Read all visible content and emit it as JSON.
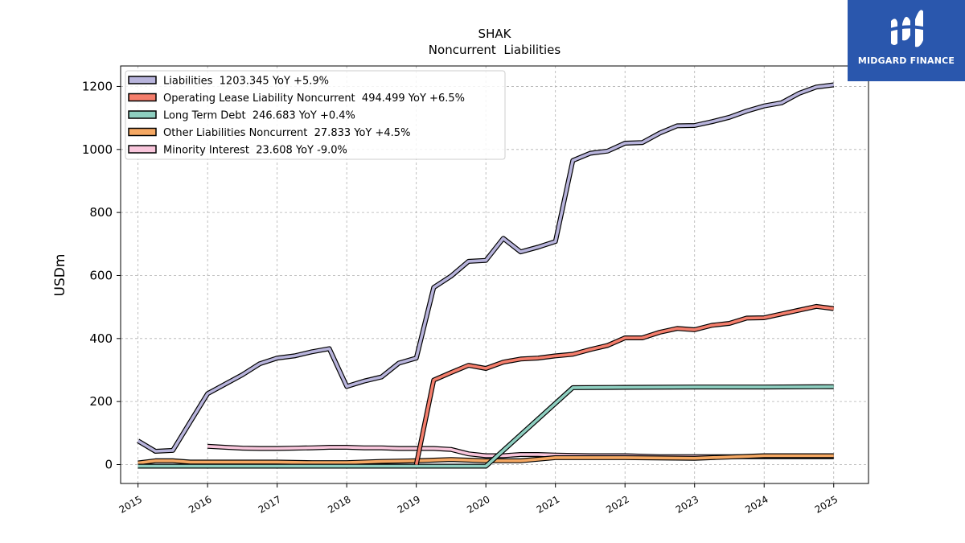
{
  "brand": {
    "name": "MIDGARD FINANCE",
    "logo_icon": "midgard-finance-logo-icon",
    "color": "#2a57ad"
  },
  "chart_data": {
    "type": "line",
    "title": "SHAK",
    "subtitle": "Noncurrent  Liabilities",
    "ylabel": "USDm",
    "xlabel": "",
    "xlim": [
      2014.75,
      2025.5
    ],
    "ylim": [
      -60,
      1265
    ],
    "yticks": [
      0,
      200,
      400,
      600,
      800,
      1000,
      1200
    ],
    "xticks": [
      2015,
      2016,
      2017,
      2018,
      2019,
      2020,
      2021,
      2022,
      2023,
      2024,
      2025
    ],
    "xtick_labels": [
      "2015",
      "2016",
      "2017",
      "2018",
      "2019",
      "2020",
      "2021",
      "2022",
      "2023",
      "2024",
      "2025"
    ],
    "grid": true,
    "legend_position": "top-left",
    "series": [
      {
        "name": "Liabilities",
        "legend": "Liabilities  1203.345 YoY +5.9%",
        "color": "#b8b4dc",
        "x": [
          2015.0,
          2015.25,
          2015.5,
          2015.75,
          2016.0,
          2016.25,
          2016.5,
          2016.75,
          2017.0,
          2017.25,
          2017.5,
          2017.75,
          2018.0,
          2018.25,
          2018.5,
          2018.75,
          2019.0,
          2019.25,
          2019.5,
          2019.75,
          2020.0,
          2020.25,
          2020.5,
          2020.75,
          2021.0,
          2021.25,
          2021.5,
          2021.75,
          2022.0,
          2022.25,
          2022.5,
          2022.75,
          2023.0,
          2023.25,
          2023.5,
          2023.75,
          2024.0,
          2024.25,
          2024.5,
          2024.75,
          2025.0
        ],
        "y": [
          75,
          42,
          45,
          135,
          225,
          255,
          285,
          320,
          338,
          345,
          358,
          368,
          248,
          265,
          278,
          322,
          338,
          562,
          598,
          645,
          648,
          718,
          675,
          690,
          708,
          965,
          988,
          995,
          1020,
          1022,
          1052,
          1075,
          1076,
          1088,
          1102,
          1122,
          1138,
          1148,
          1178,
          1198,
          1205
        ]
      },
      {
        "name": "Operating Lease Liability Noncurrent",
        "legend": "Operating Lease Liability Noncurrent  494.499 YoY +6.5%",
        "color": "#f47e6c",
        "x": [
          2019.0,
          2019.25,
          2019.5,
          2019.75,
          2020.0,
          2020.25,
          2020.5,
          2020.75,
          2021.0,
          2021.25,
          2021.5,
          2021.75,
          2022.0,
          2022.25,
          2022.5,
          2022.75,
          2023.0,
          2023.25,
          2023.5,
          2023.75,
          2024.0,
          2024.25,
          2024.5,
          2024.75,
          2025.0
        ],
        "y": [
          0,
          268,
          292,
          315,
          305,
          325,
          335,
          338,
          345,
          350,
          365,
          378,
          402,
          402,
          420,
          432,
          428,
          442,
          448,
          465,
          466,
          478,
          490,
          502,
          495
        ]
      },
      {
        "name": "Long Term Debt",
        "legend": "Long Term Debt  246.683 YoY +0.4%",
        "color": "#8ecfc0",
        "x": [
          2015.0,
          2019.0,
          2020.0,
          2021.25,
          2022.0,
          2023.0,
          2024.0,
          2025.0
        ],
        "y": [
          -5,
          -5,
          -5,
          244,
          245,
          246,
          246,
          247
        ]
      },
      {
        "name": "Other Liabilities Noncurrent",
        "legend": "Other Liabilities Noncurrent  27.833 YoY +4.5%",
        "color": "#f5a863",
        "x": [
          2015.0,
          2015.25,
          2015.5,
          2015.75,
          2016.0,
          2016.5,
          2017.0,
          2017.5,
          2018.0,
          2018.5,
          2019.0,
          2019.5,
          2020.0,
          2020.5,
          2021.0,
          2022.0,
          2023.0,
          2024.0,
          2025.0
        ],
        "y": [
          5,
          12,
          12,
          8,
          8,
          8,
          8,
          6,
          6,
          10,
          12,
          16,
          12,
          12,
          22,
          22,
          20,
          28,
          28
        ]
      },
      {
        "name": "Minority Interest",
        "legend": "Minority Interest  23.608 YoY -9.0%",
        "color": "#f9c6dc",
        "x": [
          2016.0,
          2016.25,
          2016.5,
          2016.75,
          2017.0,
          2017.25,
          2017.5,
          2017.75,
          2018.0,
          2018.25,
          2018.5,
          2018.75,
          2019.0,
          2019.25,
          2019.5,
          2019.75,
          2020.0,
          2020.25,
          2020.5,
          2020.75,
          2021.0,
          2021.5,
          2022.0,
          2022.5,
          2023.0,
          2023.5,
          2024.0,
          2024.5,
          2025.0
        ],
        "y": [
          58,
          55,
          52,
          51,
          51,
          52,
          53,
          55,
          55,
          53,
          53,
          51,
          51,
          51,
          48,
          34,
          28,
          28,
          32,
          32,
          30,
          28,
          28,
          25,
          25,
          25,
          25,
          25,
          25
        ]
      }
    ]
  }
}
